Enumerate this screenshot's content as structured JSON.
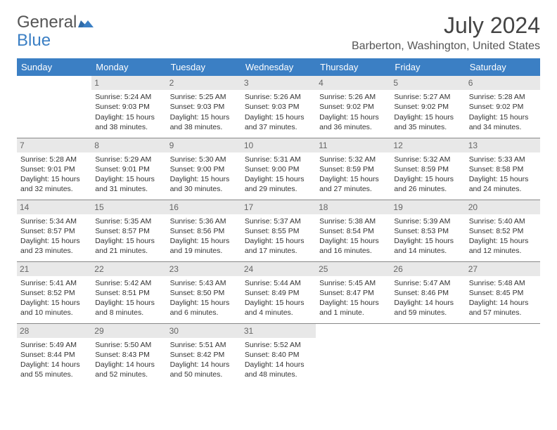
{
  "brand": {
    "part1": "General",
    "part2": "Blue"
  },
  "title": "July 2024",
  "location": "Barberton, Washington, United States",
  "header_bg": "#3b7fc4",
  "daynum_bg": "#e8e8e8",
  "day_headers": [
    "Sunday",
    "Monday",
    "Tuesday",
    "Wednesday",
    "Thursday",
    "Friday",
    "Saturday"
  ],
  "weeks": [
    [
      {
        "n": "",
        "sr": "",
        "ss": "",
        "dl": ""
      },
      {
        "n": "1",
        "sr": "Sunrise: 5:24 AM",
        "ss": "Sunset: 9:03 PM",
        "dl": "Daylight: 15 hours and 38 minutes."
      },
      {
        "n": "2",
        "sr": "Sunrise: 5:25 AM",
        "ss": "Sunset: 9:03 PM",
        "dl": "Daylight: 15 hours and 38 minutes."
      },
      {
        "n": "3",
        "sr": "Sunrise: 5:26 AM",
        "ss": "Sunset: 9:03 PM",
        "dl": "Daylight: 15 hours and 37 minutes."
      },
      {
        "n": "4",
        "sr": "Sunrise: 5:26 AM",
        "ss": "Sunset: 9:02 PM",
        "dl": "Daylight: 15 hours and 36 minutes."
      },
      {
        "n": "5",
        "sr": "Sunrise: 5:27 AM",
        "ss": "Sunset: 9:02 PM",
        "dl": "Daylight: 15 hours and 35 minutes."
      },
      {
        "n": "6",
        "sr": "Sunrise: 5:28 AM",
        "ss": "Sunset: 9:02 PM",
        "dl": "Daylight: 15 hours and 34 minutes."
      }
    ],
    [
      {
        "n": "7",
        "sr": "Sunrise: 5:28 AM",
        "ss": "Sunset: 9:01 PM",
        "dl": "Daylight: 15 hours and 32 minutes."
      },
      {
        "n": "8",
        "sr": "Sunrise: 5:29 AM",
        "ss": "Sunset: 9:01 PM",
        "dl": "Daylight: 15 hours and 31 minutes."
      },
      {
        "n": "9",
        "sr": "Sunrise: 5:30 AM",
        "ss": "Sunset: 9:00 PM",
        "dl": "Daylight: 15 hours and 30 minutes."
      },
      {
        "n": "10",
        "sr": "Sunrise: 5:31 AM",
        "ss": "Sunset: 9:00 PM",
        "dl": "Daylight: 15 hours and 29 minutes."
      },
      {
        "n": "11",
        "sr": "Sunrise: 5:32 AM",
        "ss": "Sunset: 8:59 PM",
        "dl": "Daylight: 15 hours and 27 minutes."
      },
      {
        "n": "12",
        "sr": "Sunrise: 5:32 AM",
        "ss": "Sunset: 8:59 PM",
        "dl": "Daylight: 15 hours and 26 minutes."
      },
      {
        "n": "13",
        "sr": "Sunrise: 5:33 AM",
        "ss": "Sunset: 8:58 PM",
        "dl": "Daylight: 15 hours and 24 minutes."
      }
    ],
    [
      {
        "n": "14",
        "sr": "Sunrise: 5:34 AM",
        "ss": "Sunset: 8:57 PM",
        "dl": "Daylight: 15 hours and 23 minutes."
      },
      {
        "n": "15",
        "sr": "Sunrise: 5:35 AM",
        "ss": "Sunset: 8:57 PM",
        "dl": "Daylight: 15 hours and 21 minutes."
      },
      {
        "n": "16",
        "sr": "Sunrise: 5:36 AM",
        "ss": "Sunset: 8:56 PM",
        "dl": "Daylight: 15 hours and 19 minutes."
      },
      {
        "n": "17",
        "sr": "Sunrise: 5:37 AM",
        "ss": "Sunset: 8:55 PM",
        "dl": "Daylight: 15 hours and 17 minutes."
      },
      {
        "n": "18",
        "sr": "Sunrise: 5:38 AM",
        "ss": "Sunset: 8:54 PM",
        "dl": "Daylight: 15 hours and 16 minutes."
      },
      {
        "n": "19",
        "sr": "Sunrise: 5:39 AM",
        "ss": "Sunset: 8:53 PM",
        "dl": "Daylight: 15 hours and 14 minutes."
      },
      {
        "n": "20",
        "sr": "Sunrise: 5:40 AM",
        "ss": "Sunset: 8:52 PM",
        "dl": "Daylight: 15 hours and 12 minutes."
      }
    ],
    [
      {
        "n": "21",
        "sr": "Sunrise: 5:41 AM",
        "ss": "Sunset: 8:52 PM",
        "dl": "Daylight: 15 hours and 10 minutes."
      },
      {
        "n": "22",
        "sr": "Sunrise: 5:42 AM",
        "ss": "Sunset: 8:51 PM",
        "dl": "Daylight: 15 hours and 8 minutes."
      },
      {
        "n": "23",
        "sr": "Sunrise: 5:43 AM",
        "ss": "Sunset: 8:50 PM",
        "dl": "Daylight: 15 hours and 6 minutes."
      },
      {
        "n": "24",
        "sr": "Sunrise: 5:44 AM",
        "ss": "Sunset: 8:49 PM",
        "dl": "Daylight: 15 hours and 4 minutes."
      },
      {
        "n": "25",
        "sr": "Sunrise: 5:45 AM",
        "ss": "Sunset: 8:47 PM",
        "dl": "Daylight: 15 hours and 1 minute."
      },
      {
        "n": "26",
        "sr": "Sunrise: 5:47 AM",
        "ss": "Sunset: 8:46 PM",
        "dl": "Daylight: 14 hours and 59 minutes."
      },
      {
        "n": "27",
        "sr": "Sunrise: 5:48 AM",
        "ss": "Sunset: 8:45 PM",
        "dl": "Daylight: 14 hours and 57 minutes."
      }
    ],
    [
      {
        "n": "28",
        "sr": "Sunrise: 5:49 AM",
        "ss": "Sunset: 8:44 PM",
        "dl": "Daylight: 14 hours and 55 minutes."
      },
      {
        "n": "29",
        "sr": "Sunrise: 5:50 AM",
        "ss": "Sunset: 8:43 PM",
        "dl": "Daylight: 14 hours and 52 minutes."
      },
      {
        "n": "30",
        "sr": "Sunrise: 5:51 AM",
        "ss": "Sunset: 8:42 PM",
        "dl": "Daylight: 14 hours and 50 minutes."
      },
      {
        "n": "31",
        "sr": "Sunrise: 5:52 AM",
        "ss": "Sunset: 8:40 PM",
        "dl": "Daylight: 14 hours and 48 minutes."
      },
      {
        "n": "",
        "sr": "",
        "ss": "",
        "dl": ""
      },
      {
        "n": "",
        "sr": "",
        "ss": "",
        "dl": ""
      },
      {
        "n": "",
        "sr": "",
        "ss": "",
        "dl": ""
      }
    ]
  ]
}
